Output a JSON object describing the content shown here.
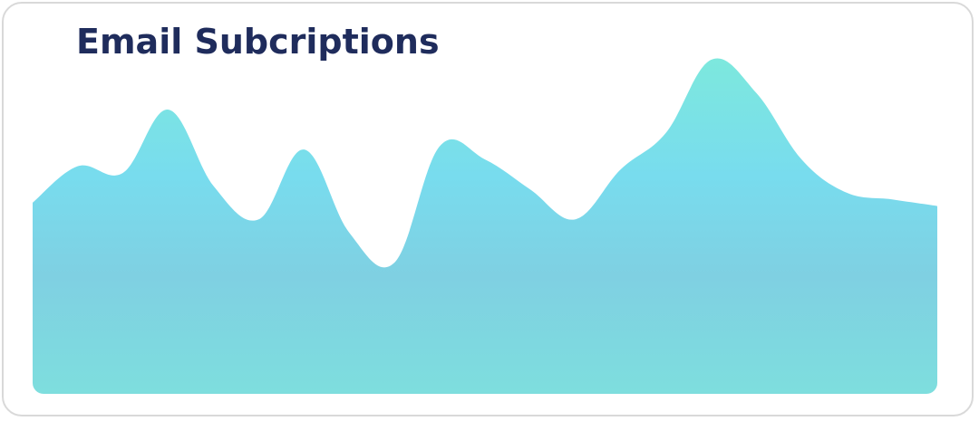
{
  "chart_data": {
    "type": "area",
    "title": "Email Subcriptions",
    "xlabel": "",
    "ylabel": "",
    "ylim": [
      0,
      100
    ],
    "grid": false,
    "legend": "none",
    "x": [
      0,
      1,
      2,
      3,
      4,
      5,
      6,
      7,
      8,
      9,
      10,
      11,
      12,
      13,
      14,
      15,
      16,
      17,
      18,
      19,
      20
    ],
    "values": [
      57,
      68,
      66,
      85,
      62,
      52,
      73,
      48,
      39,
      74,
      70,
      61,
      52,
      67,
      78,
      100,
      90,
      70,
      60,
      58,
      56
    ],
    "colors": {
      "top": "#7de8dd",
      "upper": "#78dcee",
      "middle": "#7fd0e2",
      "bottom": "#7edede",
      "title": "#1f2c5c",
      "border": "#d9d9d9"
    }
  }
}
